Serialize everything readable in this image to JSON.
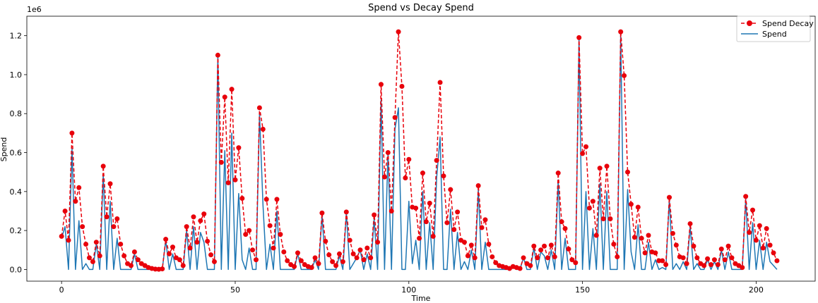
{
  "chart_data": {
    "type": "line",
    "title": "Spend vs Decay Spend",
    "xlabel": "Time",
    "ylabel": "Spend",
    "y_scale_label": "1e6",
    "xlim": [
      -10,
      217
    ],
    "ylim": [
      -0.06,
      1.3
    ],
    "x_ticks": [
      0,
      50,
      100,
      150,
      200
    ],
    "y_ticks": [
      0.0,
      0.2,
      0.4,
      0.6,
      0.8,
      1.0,
      1.2
    ],
    "x_tick_labels": [
      "0",
      "50",
      "100",
      "150",
      "200"
    ],
    "y_tick_labels": [
      "0.0",
      "0.2",
      "0.4",
      "0.6",
      "0.8",
      "1.0",
      "1.2"
    ],
    "legend_position": "top-right",
    "series": [
      {
        "name": "Spend Decay",
        "color": "#e8000b",
        "style": "dashed-with-circle-markers",
        "values": [
          0.17,
          0.3,
          0.15,
          0.7,
          0.35,
          0.42,
          0.22,
          0.13,
          0.06,
          0.04,
          0.14,
          0.07,
          0.53,
          0.27,
          0.44,
          0.22,
          0.26,
          0.13,
          0.07,
          0.03,
          0.02,
          0.09,
          0.05,
          0.03,
          0.02,
          0.01,
          0.005,
          0.002,
          0.001,
          0.003,
          0.155,
          0.08,
          0.115,
          0.06,
          0.05,
          0.02,
          0.22,
          0.11,
          0.27,
          0.14,
          0.25,
          0.285,
          0.145,
          0.075,
          0.04,
          1.1,
          0.55,
          0.885,
          0.445,
          0.925,
          0.46,
          0.625,
          0.365,
          0.18,
          0.2,
          0.1,
          0.05,
          0.83,
          0.72,
          0.36,
          0.225,
          0.11,
          0.36,
          0.18,
          0.09,
          0.045,
          0.025,
          0.015,
          0.085,
          0.045,
          0.025,
          0.015,
          0.01,
          0.06,
          0.03,
          0.29,
          0.145,
          0.075,
          0.04,
          0.02,
          0.08,
          0.04,
          0.295,
          0.15,
          0.08,
          0.06,
          0.1,
          0.05,
          0.11,
          0.06,
          0.28,
          0.14,
          0.95,
          0.475,
          0.6,
          0.3,
          0.78,
          1.22,
          0.94,
          0.47,
          0.565,
          0.32,
          0.315,
          0.16,
          0.495,
          0.245,
          0.34,
          0.17,
          0.56,
          0.96,
          0.48,
          0.24,
          0.41,
          0.205,
          0.295,
          0.15,
          0.14,
          0.07,
          0.125,
          0.06,
          0.43,
          0.215,
          0.255,
          0.13,
          0.065,
          0.035,
          0.02,
          0.015,
          0.01,
          0.005,
          0.015,
          0.01,
          0.005,
          0.06,
          0.03,
          0.02,
          0.12,
          0.06,
          0.1,
          0.12,
          0.06,
          0.125,
          0.065,
          0.495,
          0.245,
          0.21,
          0.105,
          0.05,
          0.035,
          1.19,
          0.595,
          0.63,
          0.315,
          0.35,
          0.175,
          0.52,
          0.26,
          0.53,
          0.26,
          0.13,
          0.065,
          1.22,
          0.995,
          0.5,
          0.335,
          0.165,
          0.32,
          0.16,
          0.085,
          0.175,
          0.09,
          0.085,
          0.045,
          0.045,
          0.025,
          0.37,
          0.185,
          0.125,
          0.065,
          0.06,
          0.03,
          0.235,
          0.12,
          0.06,
          0.03,
          0.02,
          0.055,
          0.025,
          0.05,
          0.025,
          0.105,
          0.05,
          0.12,
          0.06,
          0.03,
          0.02,
          0.01,
          0.375,
          0.19,
          0.305,
          0.15,
          0.225,
          0.11,
          0.21,
          0.125,
          0.085,
          0.045
        ]
      },
      {
        "name": "Spend",
        "color": "#1f77b4",
        "style": "solid",
        "values": [
          0.16,
          0.22,
          0.0,
          0.62,
          0.0,
          0.25,
          0.0,
          0.03,
          0.0,
          0.0,
          0.13,
          0.0,
          0.49,
          0.0,
          0.35,
          0.0,
          0.16,
          0.0,
          0.0,
          0.0,
          0.0,
          0.08,
          0.0,
          0.0,
          0.0,
          0.0,
          0.0,
          0.0,
          0.0,
          0.0,
          0.15,
          0.0,
          0.08,
          0.0,
          0.0,
          0.0,
          0.2,
          0.0,
          0.22,
          0.0,
          0.19,
          0.14,
          0.0,
          0.0,
          0.0,
          1.1,
          0.0,
          0.61,
          0.0,
          0.7,
          0.0,
          0.39,
          0.05,
          0.0,
          0.11,
          0.0,
          0.0,
          0.8,
          0.33,
          0.0,
          0.13,
          0.0,
          0.3,
          0.0,
          0.0,
          0.0,
          0.0,
          0.0,
          0.08,
          0.0,
          0.0,
          0.0,
          0.0,
          0.05,
          0.0,
          0.28,
          0.0,
          0.0,
          0.0,
          0.0,
          0.07,
          0.0,
          0.29,
          0.0,
          0.03,
          0.06,
          0.1,
          0.0,
          0.08,
          0.0,
          0.26,
          0.0,
          0.87,
          0.0,
          0.6,
          0.0,
          0.72,
          0.83,
          0.0,
          0.0,
          0.35,
          0.03,
          0.15,
          0.0,
          0.4,
          0.0,
          0.24,
          0.0,
          0.47,
          0.68,
          0.0,
          0.0,
          0.31,
          0.0,
          0.19,
          0.0,
          0.04,
          0.0,
          0.1,
          0.0,
          0.41,
          0.0,
          0.14,
          0.0,
          0.0,
          0.0,
          0.0,
          0.0,
          0.0,
          0.0,
          0.01,
          0.0,
          0.0,
          0.06,
          0.0,
          0.0,
          0.11,
          0.0,
          0.09,
          0.07,
          0.0,
          0.1,
          0.0,
          0.46,
          0.0,
          0.16,
          0.0,
          0.0,
          0.0,
          1.18,
          0.0,
          0.4,
          0.0,
          0.21,
          0.0,
          0.44,
          0.0,
          0.4,
          0.0,
          0.0,
          0.0,
          1.21,
          0.0,
          0.41,
          0.09,
          0.0,
          0.23,
          0.0,
          0.0,
          0.14,
          0.0,
          0.05,
          0.0,
          0.01,
          0.0,
          0.36,
          0.0,
          0.03,
          0.0,
          0.04,
          0.0,
          0.22,
          0.0,
          0.03,
          0.0,
          0.0,
          0.05,
          0.0,
          0.04,
          0.0,
          0.1,
          0.0,
          0.09,
          0.0,
          0.0,
          0.0,
          0.0,
          0.36,
          0.0,
          0.24,
          0.0,
          0.15,
          0.0,
          0.14,
          0.04,
          0.02,
          0.0
        ]
      }
    ]
  }
}
